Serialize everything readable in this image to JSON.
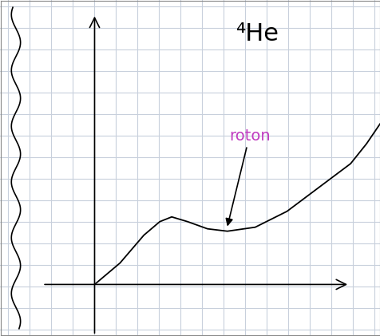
{
  "chart_data": {
    "type": "line",
    "title": "⁴He",
    "x": [
      0,
      0.64,
      1.24,
      1.64,
      1.94,
      2.34,
      2.84,
      3.34,
      4.04,
      4.84,
      5.64,
      6.44,
      6.84,
      7.18
    ],
    "values": [
      0,
      0.54,
      1.24,
      1.58,
      1.7,
      1.58,
      1.4,
      1.34,
      1.44,
      1.84,
      2.44,
      3.04,
      3.54,
      4.04
    ],
    "color": "black",
    "xlim": [
      -2.36,
      7.18
    ],
    "ylim": [
      -1.28,
      7.14
    ],
    "xticks": [],
    "yticks": [],
    "tick_labels": false,
    "annotations": [
      {
        "text": "roton",
        "x": 3.34,
        "y": 1.34,
        "color": "#c03cc0"
      }
    ]
  }
}
